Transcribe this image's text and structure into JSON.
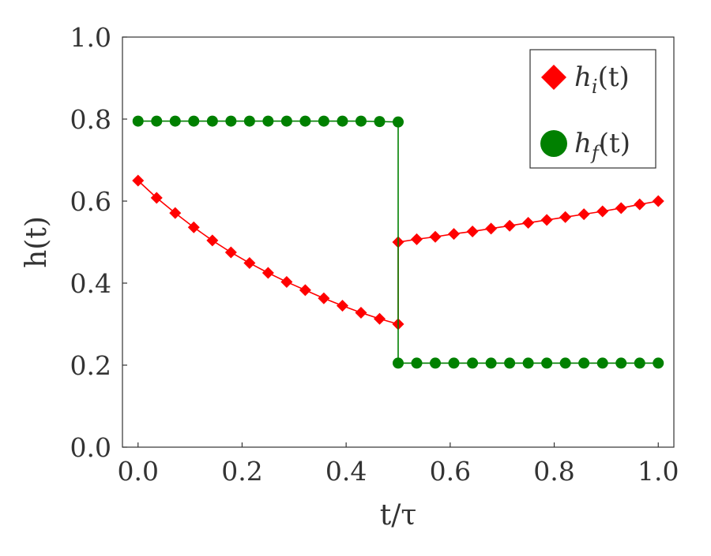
{
  "chart_data": {
    "type": "line",
    "xlabel": "t/τ",
    "ylabel": "h(t)",
    "xlim": [
      -0.03,
      1.03
    ],
    "ylim": [
      0.0,
      1.0
    ],
    "xticks": [
      "0.0",
      "0.2",
      "0.4",
      "0.6",
      "0.8",
      "1.0"
    ],
    "yticks": [
      "0.0",
      "0.2",
      "0.4",
      "0.6",
      "0.8",
      "1.0"
    ],
    "grid": false,
    "legend_position": "top-right",
    "series": [
      {
        "name": "h_i(t)",
        "legend_main": "h",
        "legend_sub": "i",
        "legend_suffix": "(t)",
        "color": "#ff0000",
        "marker": "diamond",
        "x": [
          0.0,
          0.0357,
          0.0714,
          0.1071,
          0.1429,
          0.1786,
          0.2143,
          0.25,
          0.2857,
          0.3214,
          0.3571,
          0.3929,
          0.4286,
          0.4643,
          0.5,
          0.5,
          0.5357,
          0.5714,
          0.6071,
          0.6429,
          0.6786,
          0.7143,
          0.75,
          0.7857,
          0.8214,
          0.8571,
          0.8929,
          0.9286,
          0.9643,
          1.0
        ],
        "y": [
          0.65,
          0.608,
          0.571,
          0.536,
          0.504,
          0.475,
          0.449,
          0.425,
          0.403,
          0.383,
          0.363,
          0.345,
          0.328,
          0.313,
          0.3,
          0.5,
          0.507,
          0.513,
          0.52,
          0.526,
          0.533,
          0.54,
          0.547,
          0.554,
          0.561,
          0.568,
          0.575,
          0.583,
          0.592,
          0.6
        ]
      },
      {
        "name": "h_f(t)",
        "legend_main": "h",
        "legend_sub": "f",
        "legend_suffix": "(t)",
        "color": "#008000",
        "marker": "circle",
        "x": [
          0.0,
          0.0357,
          0.0714,
          0.1071,
          0.1429,
          0.1786,
          0.2143,
          0.25,
          0.2857,
          0.3214,
          0.3571,
          0.3929,
          0.4286,
          0.4643,
          0.5,
          0.5,
          0.5357,
          0.5714,
          0.6071,
          0.6429,
          0.6786,
          0.7143,
          0.75,
          0.7857,
          0.8214,
          0.8571,
          0.8929,
          0.9286,
          0.9643,
          1.0
        ],
        "y": [
          0.795,
          0.795,
          0.795,
          0.795,
          0.795,
          0.795,
          0.795,
          0.795,
          0.795,
          0.795,
          0.795,
          0.795,
          0.795,
          0.794,
          0.793,
          0.205,
          0.205,
          0.205,
          0.205,
          0.205,
          0.205,
          0.205,
          0.205,
          0.205,
          0.205,
          0.205,
          0.205,
          0.205,
          0.205,
          0.205
        ]
      }
    ]
  }
}
